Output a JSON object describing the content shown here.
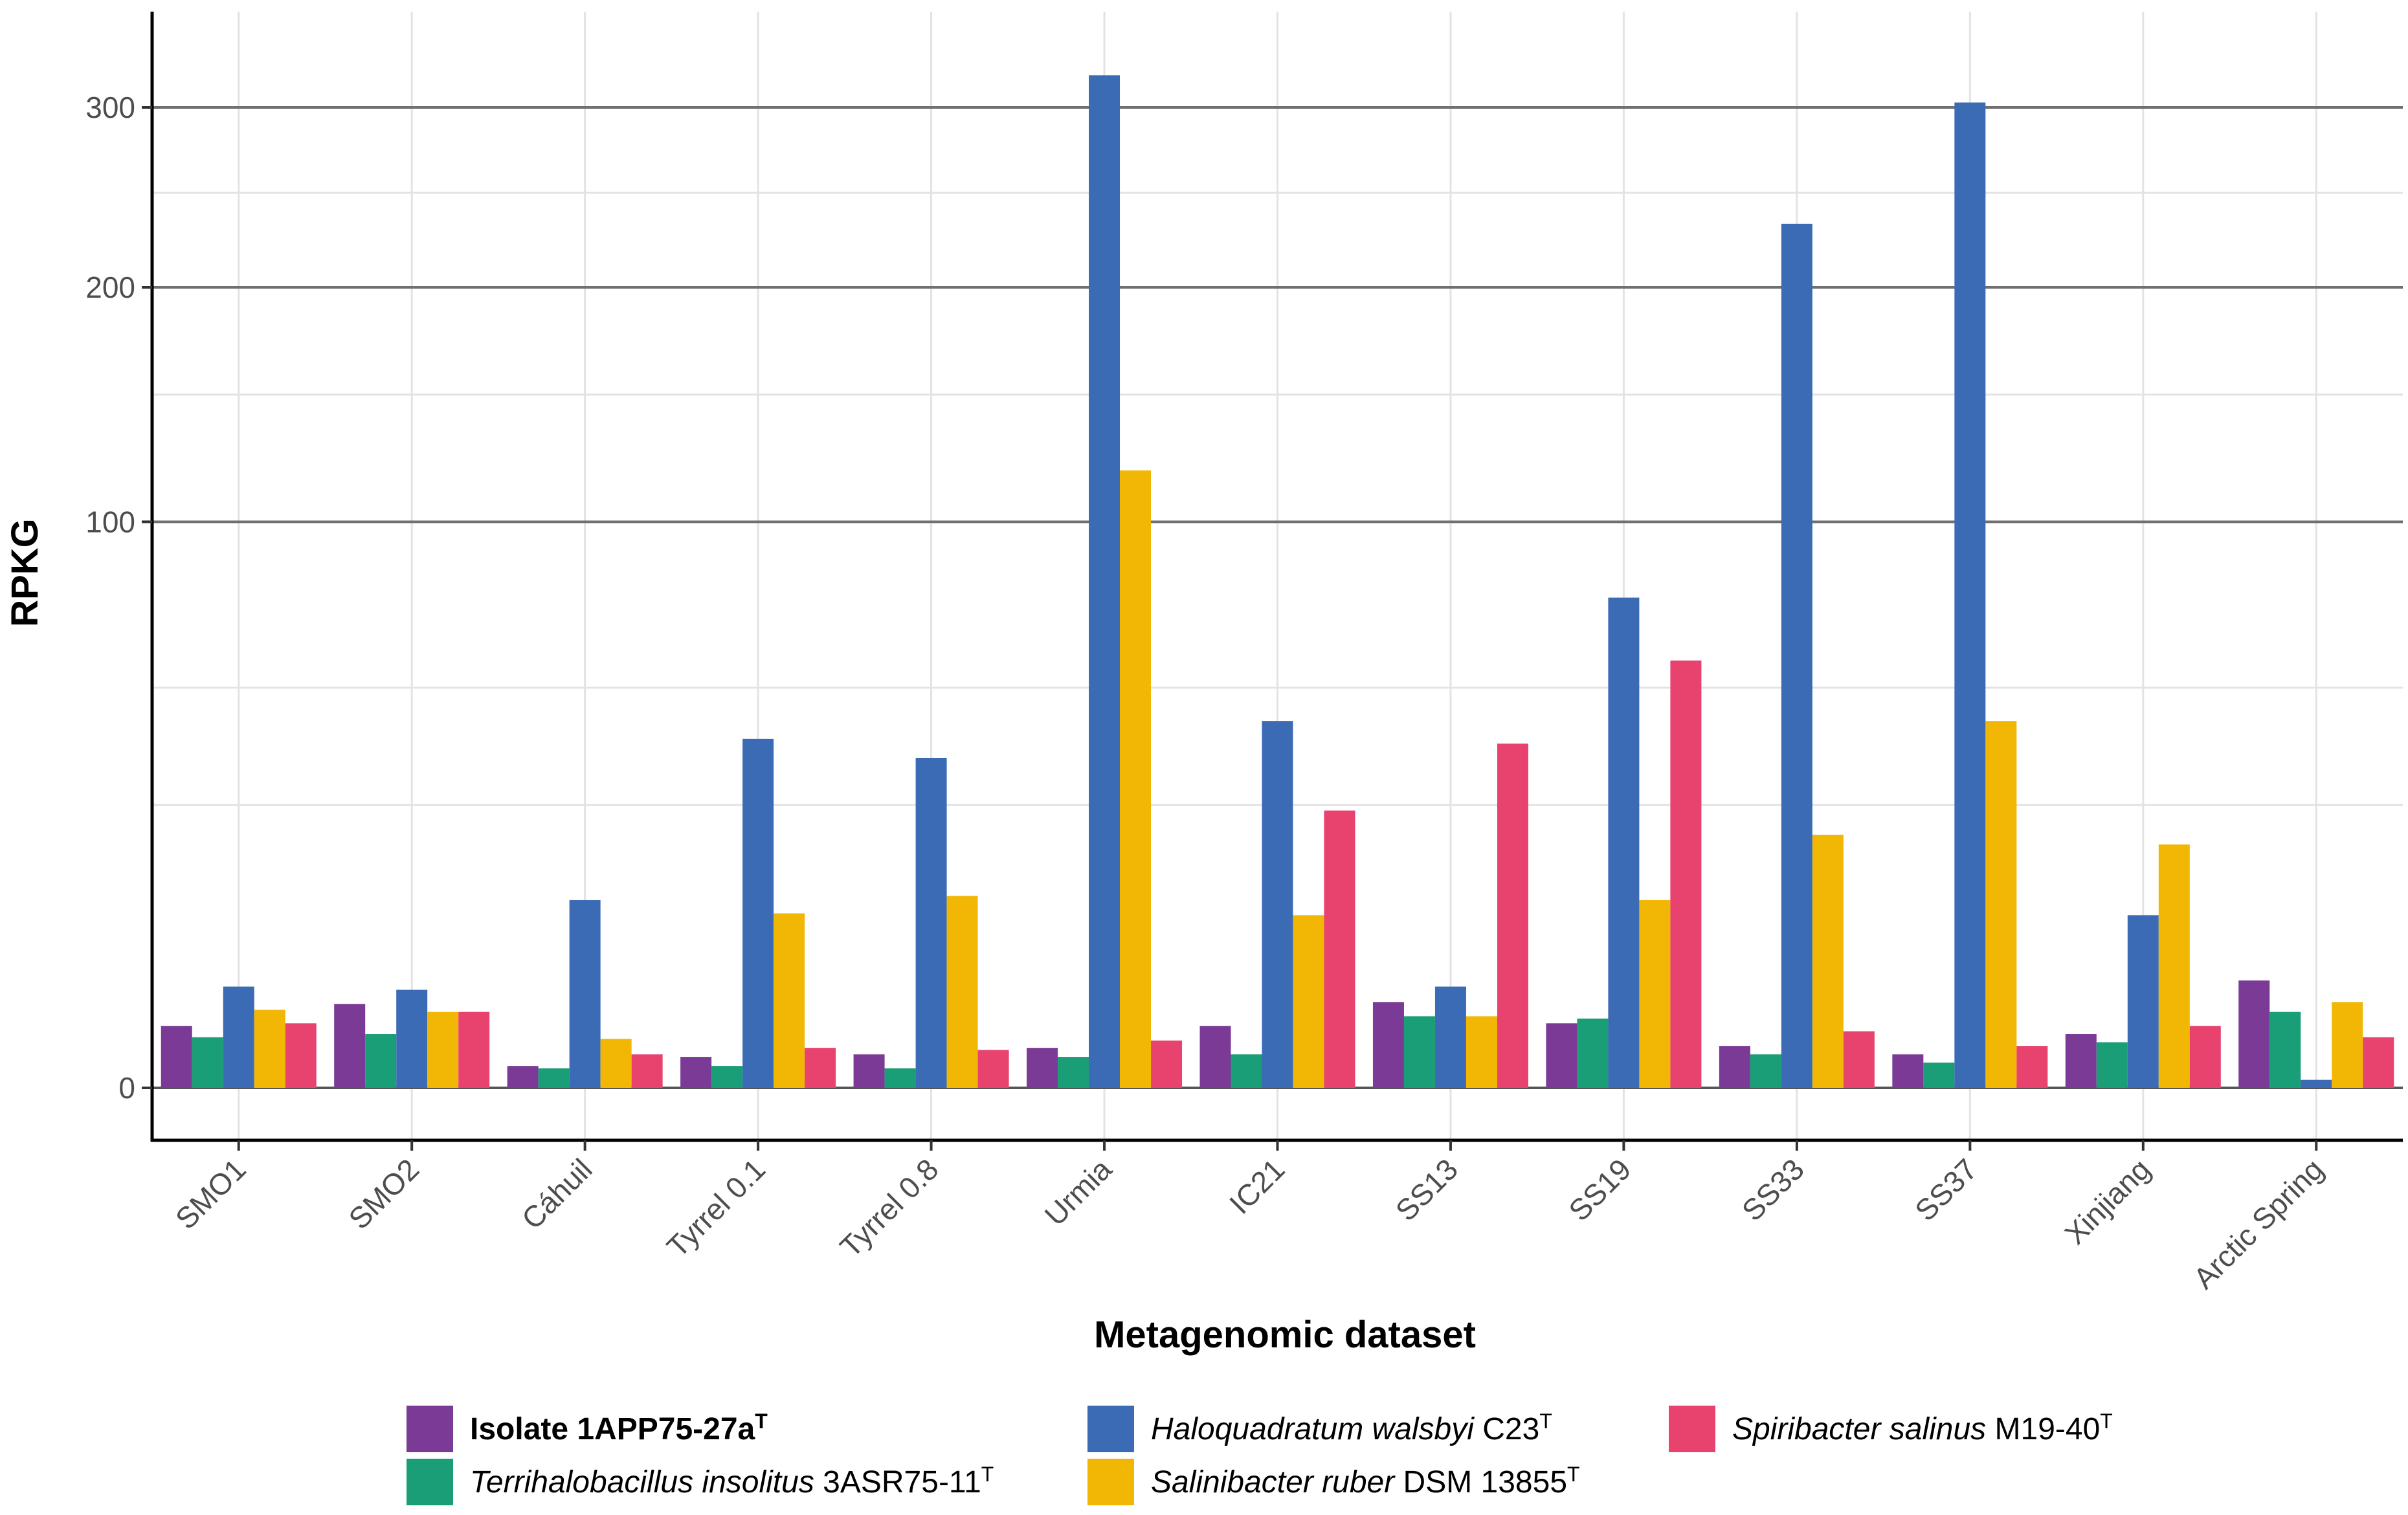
{
  "chart_data": {
    "type": "bar",
    "title": "",
    "xlabel": "Metagenomic dataset",
    "ylabel": "RPKG",
    "yscale": "sqrt",
    "yticks": [
      0,
      100,
      200,
      300
    ],
    "yminor": [
      25,
      50,
      150,
      250
    ],
    "ylim": [
      0,
      350
    ],
    "categories": [
      "SMO1",
      "SMO2",
      "Cáhuil",
      "Tyrrel 0.1",
      "Tyrrel 0.8",
      "Urmia",
      "IC21",
      "SS13",
      "SS19",
      "SS33",
      "SS37",
      "Xinjiang",
      "Arctic Spring"
    ],
    "series": [
      {
        "name": "Isolate 1APP75-27a",
        "sup": "T",
        "color": "#7B3A96",
        "values": [
          1.2,
          2.2,
          0.15,
          0.3,
          0.35,
          0.5,
          1.2,
          2.3,
          1.3,
          0.55,
          0.35,
          0.9,
          3.6
        ]
      },
      {
        "name": "Terrihalobacillus insolitus 3ASR75-11",
        "sup": "T",
        "color": "#1A9E77",
        "values": [
          0.8,
          0.9,
          0.12,
          0.15,
          0.12,
          0.3,
          0.35,
          1.6,
          1.5,
          0.35,
          0.2,
          0.65,
          1.8
        ]
      },
      {
        "name": "Haloquadratum walsbyi C23",
        "sup": "T",
        "color": "#3B6BB5",
        "values": [
          3.2,
          3.0,
          11,
          38,
          34,
          320,
          42,
          3.2,
          75,
          233,
          303,
          9.3,
          0.02
        ]
      },
      {
        "name": "Salinibacter ruber DSM 13855",
        "sup": "T",
        "color": "#F2B705",
        "values": [
          1.9,
          1.8,
          0.75,
          9.5,
          11.5,
          119,
          9.3,
          1.6,
          11.0,
          20,
          42,
          18.5,
          2.3
        ]
      },
      {
        "name": "Spiribacter salinus M19-40",
        "sup": "T",
        "color": "#E8436F",
        "values": [
          1.3,
          1.8,
          0.35,
          0.5,
          0.45,
          0.7,
          24,
          37,
          57,
          1.0,
          0.55,
          1.2,
          0.8
        ]
      }
    ]
  },
  "legend": {
    "items": [
      {
        "prefix": "Isolate 1APP75-27a",
        "italic": "",
        "suffix": "",
        "sup": "T",
        "bold": true
      },
      {
        "prefix": "",
        "italic": "Haloquadratum walsbyi",
        "suffix": " C23",
        "sup": "T",
        "bold": false
      },
      {
        "prefix": "",
        "italic": "Spiribacter salinus",
        "suffix": " M19-40",
        "sup": "T",
        "bold": false
      },
      {
        "prefix": "",
        "italic": "Terrihalobacillus insolitus",
        "suffix": " 3ASR75-11",
        "sup": "T",
        "bold": false
      },
      {
        "prefix": "",
        "italic": "Salinibacter ruber",
        "suffix": " DSM 13855",
        "sup": "T",
        "bold": false
      }
    ]
  }
}
